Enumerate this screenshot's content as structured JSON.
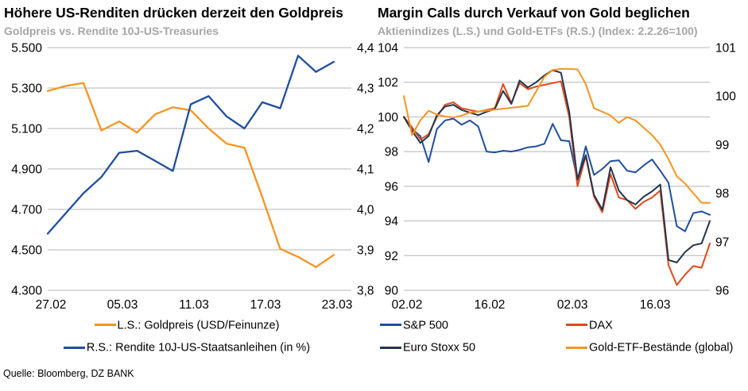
{
  "source_note": "Quelle: Bloomberg, DZ BANK",
  "colors": {
    "gold": "#F79420",
    "yield_blue": "#1F4E9E",
    "sp500": "#1F4E9E",
    "dax": "#E2481C",
    "eurostoxx": "#24364D",
    "goldetf": "#F79420",
    "grid": "#B5B5B5",
    "subtitle_gray": "#A6A6A6",
    "title_black": "#000000"
  },
  "chart_data": [
    {
      "type": "line",
      "title": "Höhere US-Renditen drücken derzeit den Goldpreis",
      "subtitle": "Goldpreis vs. Rendite 10J-US-Treasuries",
      "grid": true,
      "legend_position": "bottom-center",
      "legend_columns": 1,
      "n_points": 17,
      "x_tick_labels": [
        "27.02",
        "05.03",
        "11.03",
        "17.03",
        "23.03"
      ],
      "x_tick_indices": [
        0,
        4,
        8,
        12,
        16
      ],
      "left_axis": {
        "min": 4300,
        "max": 5500,
        "tick_labels": [
          "5.500",
          "5.300",
          "5.100",
          "4.900",
          "4.700",
          "4.500",
          "4.300"
        ]
      },
      "right_axis": {
        "min": 3.8,
        "max": 4.4,
        "tick_labels": [
          "4,4",
          "4,3",
          "4,2",
          "4,1",
          "4,0",
          "3,9",
          "3,8"
        ]
      },
      "series": [
        {
          "name": "L.S.: Goldpreis (USD/Feinunze)",
          "axis": "left",
          "color_key": "gold",
          "values": [
            5285,
            5310,
            5325,
            5090,
            5135,
            5080,
            5170,
            5205,
            5190,
            5100,
            5025,
            5005,
            4760,
            4505,
            4465,
            4415,
            4475
          ]
        },
        {
          "name": "R.S.: Rendite 10J-US-Staatsanleihen (in %)",
          "axis": "right",
          "color_key": "yield_blue",
          "values": [
            3.94,
            3.99,
            4.04,
            4.08,
            4.14,
            4.145,
            4.12,
            4.095,
            4.26,
            4.28,
            4.23,
            4.2,
            4.265,
            4.25,
            4.38,
            4.34,
            4.365
          ]
        }
      ]
    },
    {
      "type": "line",
      "title": "Margin Calls durch Verkauf von Gold beglichen",
      "subtitle": "Aktienindizes (L.S.) und Gold-ETFs (R.S.) (Index: 2.2.26=100)",
      "grid": true,
      "legend_position": "bottom-left",
      "legend_columns": 2,
      "n_points": 38,
      "x_tick_labels": [
        "02.02",
        "16.02",
        "02.03",
        "16.03"
      ],
      "x_tick_indices": [
        0,
        10,
        20,
        30
      ],
      "left_axis": {
        "min": 90,
        "max": 104,
        "tick_labels": [
          "104",
          "102",
          "100",
          "98",
          "96",
          "94",
          "92",
          "90"
        ]
      },
      "right_axis": {
        "min": 96,
        "max": 101,
        "tick_labels": [
          "101",
          "100",
          "99",
          "98",
          "97",
          "96"
        ]
      },
      "series": [
        {
          "name": "S&P 500",
          "axis": "left",
          "color_key": "sp500",
          "values": [
            100,
            99.3,
            98.9,
            97.4,
            99.3,
            99.8,
            99.9,
            99.55,
            99.8,
            99.45,
            98.0,
            97.95,
            98.05,
            98.0,
            98.1,
            98.25,
            98.3,
            98.45,
            99.6,
            98.65,
            98.6,
            96.35,
            98.3,
            96.65,
            97.0,
            97.45,
            97.5,
            96.9,
            96.8,
            97.2,
            97.55,
            96.9,
            96.2,
            93.7,
            93.4,
            94.45,
            94.55,
            94.35
          ]
        },
        {
          "name": "DAX",
          "axis": "left",
          "color_key": "dax",
          "values": [
            100,
            99.4,
            98.7,
            99.0,
            100.0,
            100.7,
            100.85,
            100.5,
            100.4,
            100.3,
            100.4,
            100.5,
            101.9,
            100.8,
            101.95,
            101.6,
            101.75,
            101.85,
            101.95,
            102.05,
            100.0,
            96.0,
            97.75,
            95.4,
            94.5,
            96.7,
            95.35,
            95.2,
            94.7,
            95.1,
            95.35,
            95.75,
            91.45,
            90.3,
            90.9,
            91.4,
            91.3,
            92.7
          ]
        },
        {
          "name": "Euro Stoxx 50",
          "axis": "left",
          "color_key": "eurostoxx",
          "values": [
            100,
            99.2,
            98.5,
            98.9,
            100.1,
            100.6,
            100.7,
            100.4,
            100.25,
            100.1,
            100.3,
            100.45,
            101.5,
            100.75,
            102.1,
            101.7,
            102.0,
            102.4,
            102.7,
            102.55,
            100.3,
            96.4,
            97.8,
            95.5,
            94.65,
            97.1,
            95.75,
            95.2,
            94.95,
            95.4,
            95.7,
            96.1,
            91.75,
            91.6,
            92.2,
            92.6,
            92.7,
            94.0
          ]
        },
        {
          "name": "Gold-ETF-Bestände (global)",
          "axis": "right",
          "color_key": "goldetf",
          "values": [
            100,
            99.2,
            99.5,
            99.7,
            99.62,
            99.58,
            99.56,
            99.6,
            99.66,
            99.68,
            99.7,
            99.72,
            99.74,
            99.76,
            99.78,
            99.8,
            100.1,
            100.4,
            100.54,
            100.56,
            100.56,
            100.55,
            100.25,
            99.75,
            99.68,
            99.6,
            99.45,
            99.57,
            99.5,
            99.35,
            99.2,
            99.0,
            98.7,
            98.35,
            98.2,
            98.0,
            97.8,
            97.8
          ]
        }
      ]
    }
  ]
}
